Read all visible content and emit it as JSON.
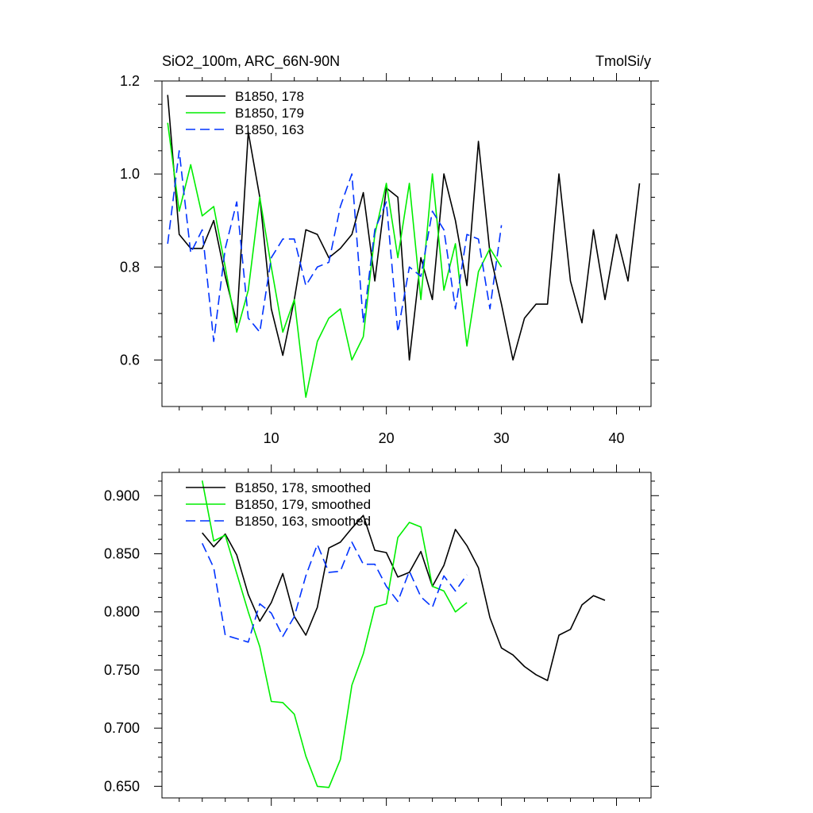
{
  "chart_data": [
    {
      "type": "line",
      "title_left": "SiO2_100m, ARC_66N-90N",
      "title_right": "TmolSi/y",
      "xlim": [
        0.5,
        43.0
      ],
      "ylim": [
        0.5,
        1.2
      ],
      "x_ticks": [
        10,
        20,
        30,
        40
      ],
      "x_tick_labels": [
        "10",
        "20",
        "30",
        "40"
      ],
      "y_ticks": [
        0.6,
        0.8,
        1.0,
        1.2
      ],
      "y_tick_labels": [
        "0.6",
        "0.8",
        "1.0",
        "1.2"
      ],
      "legend_position": "top-left",
      "series": [
        {
          "name": "B1850, 178",
          "color": "#000000",
          "dash": "solid",
          "x": [
            1,
            2,
            3,
            4,
            5,
            6,
            7,
            8,
            9,
            10,
            11,
            12,
            13,
            14,
            15,
            16,
            17,
            18,
            19,
            20,
            21,
            22,
            23,
            24,
            25,
            26,
            27,
            28,
            29,
            30,
            31,
            32,
            33,
            34,
            35,
            36,
            37,
            38,
            39,
            40,
            41,
            42
          ],
          "values": [
            1.17,
            0.87,
            0.84,
            0.84,
            0.9,
            0.78,
            0.68,
            1.09,
            0.95,
            0.71,
            0.61,
            0.73,
            0.88,
            0.87,
            0.82,
            0.84,
            0.87,
            0.96,
            0.77,
            0.97,
            0.95,
            0.6,
            0.82,
            0.73,
            1.0,
            0.9,
            0.76,
            1.07,
            0.83,
            0.72,
            0.6,
            0.69,
            0.72,
            0.72,
            1.0,
            0.77,
            0.68,
            0.88,
            0.73,
            0.87,
            0.77,
            0.98
          ]
        },
        {
          "name": "B1850, 179",
          "color": "#00ee00",
          "dash": "solid",
          "x": [
            1,
            2,
            3,
            4,
            5,
            6,
            7,
            8,
            9,
            10,
            11,
            12,
            13,
            14,
            15,
            16,
            17,
            18,
            19,
            20,
            21,
            22,
            23,
            24,
            25,
            26,
            27,
            28,
            29,
            30
          ],
          "values": [
            1.11,
            0.92,
            1.02,
            0.91,
            0.93,
            0.8,
            0.66,
            0.75,
            0.95,
            0.8,
            0.66,
            0.73,
            0.52,
            0.64,
            0.69,
            0.71,
            0.6,
            0.65,
            0.87,
            0.98,
            0.82,
            0.98,
            0.73,
            1.0,
            0.75,
            0.85,
            0.63,
            0.79,
            0.84,
            0.8
          ]
        },
        {
          "name": "B1850, 163",
          "color": "#0033ff",
          "dash": "dashed",
          "x": [
            1,
            2,
            3,
            4,
            5,
            6,
            7,
            8,
            9,
            10,
            11,
            12,
            13,
            14,
            15,
            16,
            17,
            18,
            19,
            20,
            21,
            22,
            23,
            24,
            25,
            26,
            27,
            28,
            29,
            30
          ],
          "values": [
            0.85,
            1.05,
            0.83,
            0.88,
            0.64,
            0.84,
            0.94,
            0.69,
            0.66,
            0.82,
            0.86,
            0.86,
            0.76,
            0.8,
            0.81,
            0.93,
            1.0,
            0.68,
            0.88,
            0.94,
            0.66,
            0.8,
            0.78,
            0.92,
            0.88,
            0.71,
            0.87,
            0.86,
            0.71,
            0.89
          ]
        }
      ]
    },
    {
      "type": "line",
      "xlim": [
        0.5,
        43.0
      ],
      "ylim": [
        0.64,
        0.92
      ],
      "x_ticks": [
        10,
        20,
        30,
        40
      ],
      "y_ticks": [
        0.65,
        0.7,
        0.75,
        0.8,
        0.85,
        0.9
      ],
      "y_tick_labels": [
        "0.650",
        "0.700",
        "0.750",
        "0.800",
        "0.850",
        "0.900"
      ],
      "legend_position": "top-left",
      "series": [
        {
          "name": "B1850, 178, smoothed",
          "color": "#000000",
          "dash": "solid",
          "x": [
            4,
            5,
            6,
            7,
            8,
            9,
            10,
            11,
            12,
            13,
            14,
            15,
            16,
            17,
            18,
            19,
            20,
            21,
            22,
            23,
            24,
            25,
            26,
            27,
            28,
            29,
            30,
            31,
            32,
            33,
            34,
            35,
            36,
            37,
            38,
            39
          ],
          "values": [
            0.868,
            0.856,
            0.867,
            0.849,
            0.815,
            0.792,
            0.808,
            0.833,
            0.796,
            0.78,
            0.804,
            0.855,
            0.86,
            0.872,
            0.883,
            0.853,
            0.851,
            0.83,
            0.834,
            0.852,
            0.822,
            0.84,
            0.871,
            0.857,
            0.838,
            0.795,
            0.769,
            0.763,
            0.753,
            0.746,
            0.741,
            0.78,
            0.785,
            0.806,
            0.814,
            0.81
          ]
        },
        {
          "name": "B1850, 179, smoothed",
          "color": "#00ee00",
          "dash": "solid",
          "x": [
            4,
            5,
            6,
            7,
            8,
            9,
            10,
            11,
            12,
            13,
            14,
            15,
            16,
            17,
            18,
            19,
            20,
            21,
            22,
            23,
            24,
            25,
            26,
            27
          ],
          "values": [
            0.913,
            0.861,
            0.866,
            0.833,
            0.8,
            0.77,
            0.723,
            0.722,
            0.712,
            0.676,
            0.65,
            0.649,
            0.673,
            0.737,
            0.764,
            0.804,
            0.807,
            0.864,
            0.877,
            0.873,
            0.822,
            0.818,
            0.8,
            0.808
          ]
        },
        {
          "name": "B1850, 163, smoothed",
          "color": "#0033ff",
          "dash": "dashed",
          "x": [
            4,
            5,
            6,
            7,
            8,
            9,
            10,
            11,
            12,
            13,
            14,
            15,
            16,
            17,
            18,
            19,
            20,
            21,
            22,
            23,
            24,
            25,
            26,
            27
          ],
          "values": [
            0.859,
            0.838,
            0.78,
            0.777,
            0.774,
            0.807,
            0.799,
            0.779,
            0.796,
            0.831,
            0.858,
            0.834,
            0.835,
            0.86,
            0.841,
            0.841,
            0.822,
            0.809,
            0.835,
            0.813,
            0.804,
            0.831,
            0.818,
            0.832
          ]
        }
      ]
    }
  ]
}
